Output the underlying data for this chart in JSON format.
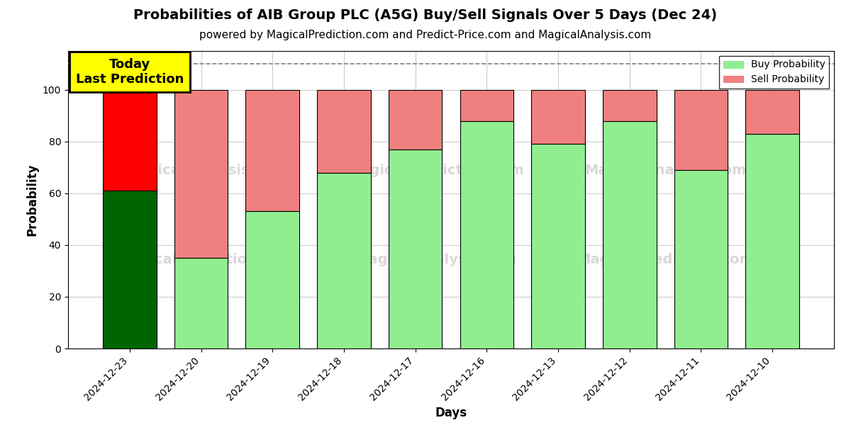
{
  "title": "Probabilities of AIB Group PLC (A5G) Buy/Sell Signals Over 5 Days (Dec 24)",
  "subtitle": "powered by MagicalPrediction.com and Predict-Price.com and MagicalAnalysis.com",
  "xlabel": "Days",
  "ylabel": "Probability",
  "categories": [
    "2024-12-23",
    "2024-12-20",
    "2024-12-19",
    "2024-12-18",
    "2024-12-17",
    "2024-12-16",
    "2024-12-13",
    "2024-12-12",
    "2024-12-11",
    "2024-12-10"
  ],
  "buy_values": [
    61,
    35,
    53,
    68,
    77,
    88,
    79,
    88,
    69,
    83
  ],
  "sell_values": [
    39,
    65,
    47,
    32,
    23,
    12,
    21,
    12,
    31,
    17
  ],
  "buy_colors": [
    "#006400",
    "#90EE90",
    "#90EE90",
    "#90EE90",
    "#90EE90",
    "#90EE90",
    "#90EE90",
    "#90EE90",
    "#90EE90",
    "#90EE90"
  ],
  "sell_colors": [
    "#FF0000",
    "#F08080",
    "#F08080",
    "#F08080",
    "#F08080",
    "#F08080",
    "#F08080",
    "#F08080",
    "#F08080",
    "#F08080"
  ],
  "today_label": "Today\nLast Prediction",
  "ylim": [
    0,
    115
  ],
  "dashed_line_y": 110,
  "legend_buy_color": "#90EE90",
  "legend_sell_color": "#F08080",
  "grid_color": "#cccccc",
  "background_color": "#ffffff",
  "title_fontsize": 14,
  "subtitle_fontsize": 11,
  "label_fontsize": 12,
  "tick_fontsize": 10
}
